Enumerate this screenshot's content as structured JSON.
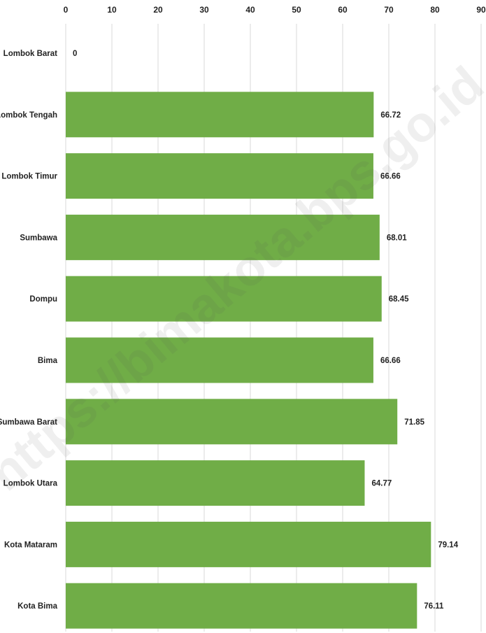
{
  "chart_data": {
    "type": "bar",
    "orientation": "horizontal",
    "categories": [
      "Lombok Barat",
      "Lombok Tengah",
      "Lombok Timur",
      "Sumbawa",
      "Dompu",
      "Bima",
      "Sumbawa Barat",
      "Lombok Utara",
      "Kota Mataram",
      "Kota Bima"
    ],
    "values": [
      0,
      66.72,
      66.66,
      68.01,
      68.45,
      66.66,
      71.85,
      64.77,
      79.14,
      76.11
    ],
    "value_labels": [
      "0",
      "66.72",
      "66.66",
      "68.01",
      "68.45",
      "66.66",
      "71.85",
      "64.77",
      "79.14",
      "76.11"
    ],
    "title": "",
    "xlabel": "",
    "ylabel": "",
    "xlim": [
      0,
      90
    ],
    "x_ticks": [
      0,
      10,
      20,
      30,
      40,
      50,
      60,
      70,
      80,
      90
    ],
    "x_axis_position": "top",
    "grid": true,
    "legend": false,
    "bar_color": "#70AD47",
    "grid_color": "#D9D9D9"
  },
  "watermark": "https://bimakota.bps.go.id"
}
